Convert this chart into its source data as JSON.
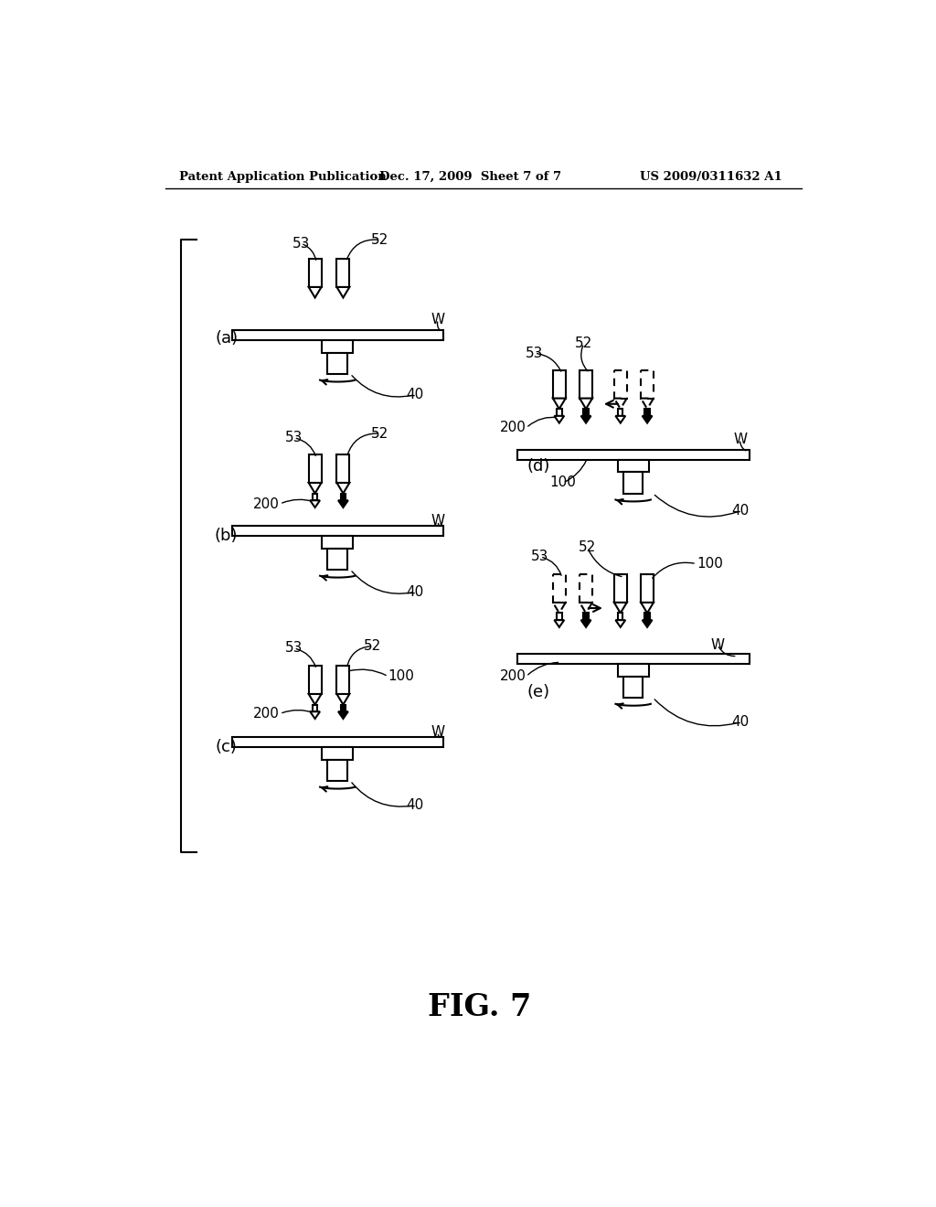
{
  "header_left": "Patent Application Publication",
  "header_mid": "Dec. 17, 2009  Sheet 7 of 7",
  "header_right": "US 2009/0311632 A1",
  "figure_label": "FIG. 7",
  "bg_color": "#ffffff",
  "line_color": "#000000",
  "fig_width": 10.24,
  "fig_height": 13.2,
  "dpi": 100
}
